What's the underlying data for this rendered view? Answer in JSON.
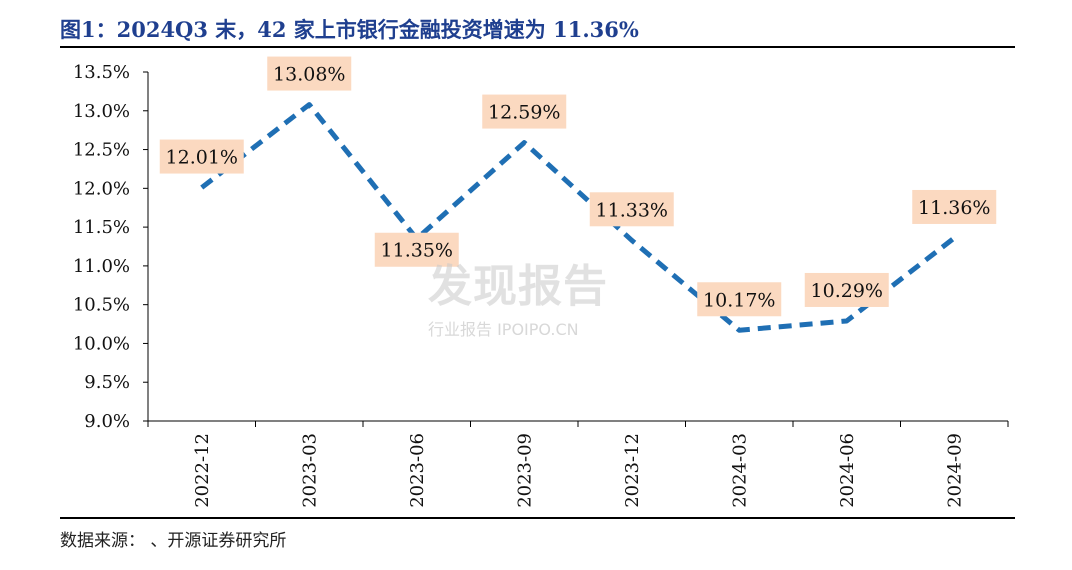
{
  "title": "图1：2024Q3 末，42 家上市银行金融投资增速为 11.36%",
  "source": "数据来源：      、开源证券研究所",
  "watermark": {
    "main": "发现报告",
    "sub": "行业报告 IPOIPO.CN"
  },
  "colors": {
    "line": "#1f6fb4",
    "label_bg": "#fbd9c0",
    "title": "#1f3f8f"
  },
  "chart_data": {
    "type": "line",
    "line_style": "dashed",
    "categories": [
      "2022-12",
      "2023-03",
      "2023-06",
      "2023-09",
      "2023-12",
      "2024-03",
      "2024-06",
      "2024-09"
    ],
    "values": [
      12.01,
      13.08,
      11.35,
      12.59,
      11.33,
      10.17,
      10.29,
      11.36
    ],
    "data_labels": [
      "12.01%",
      "13.08%",
      "11.35%",
      "12.59%",
      "11.33%",
      "10.17%",
      "10.29%",
      "11.36%"
    ],
    "y_ticks": [
      "9.0%",
      "9.5%",
      "10.0%",
      "10.5%",
      "11.0%",
      "11.5%",
      "12.0%",
      "12.5%",
      "13.0%",
      "13.5%"
    ],
    "ylim": [
      9.0,
      13.5
    ],
    "y_tick_step": 0.5,
    "grid": false,
    "legend": "none"
  }
}
